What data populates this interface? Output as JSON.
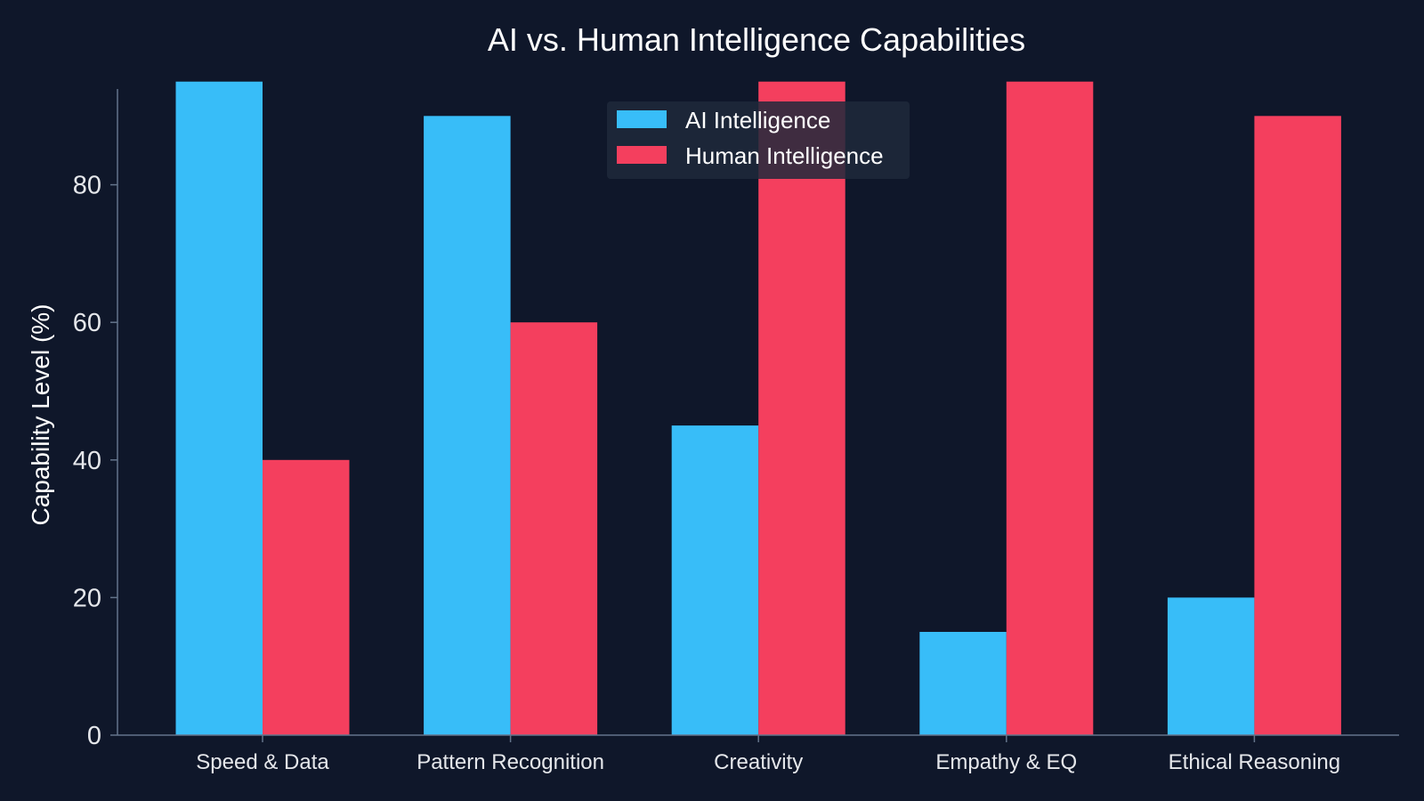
{
  "chart_data": {
    "type": "bar",
    "title": "AI vs. Human Intelligence Capabilities",
    "xlabel": "",
    "ylabel": "Capability Level (%)",
    "categories": [
      "Speed & Data",
      "Pattern Recognition",
      "Creativity",
      "Empathy & EQ",
      "Ethical Reasoning"
    ],
    "series": [
      {
        "name": "AI Intelligence",
        "values": [
          95,
          90,
          45,
          15,
          20
        ],
        "color": "#38bdf8"
      },
      {
        "name": "Human Intelligence",
        "values": [
          40,
          60,
          95,
          95,
          90
        ],
        "color": "#f43f5e"
      }
    ],
    "ylim": [
      0,
      100
    ],
    "yticks": [
      0,
      20,
      40,
      60,
      80
    ],
    "grid": false,
    "legend_position": "top-center"
  },
  "colors": {
    "background": "#0f172a",
    "axis": "#64748b",
    "legend_background": "#1e293b"
  }
}
